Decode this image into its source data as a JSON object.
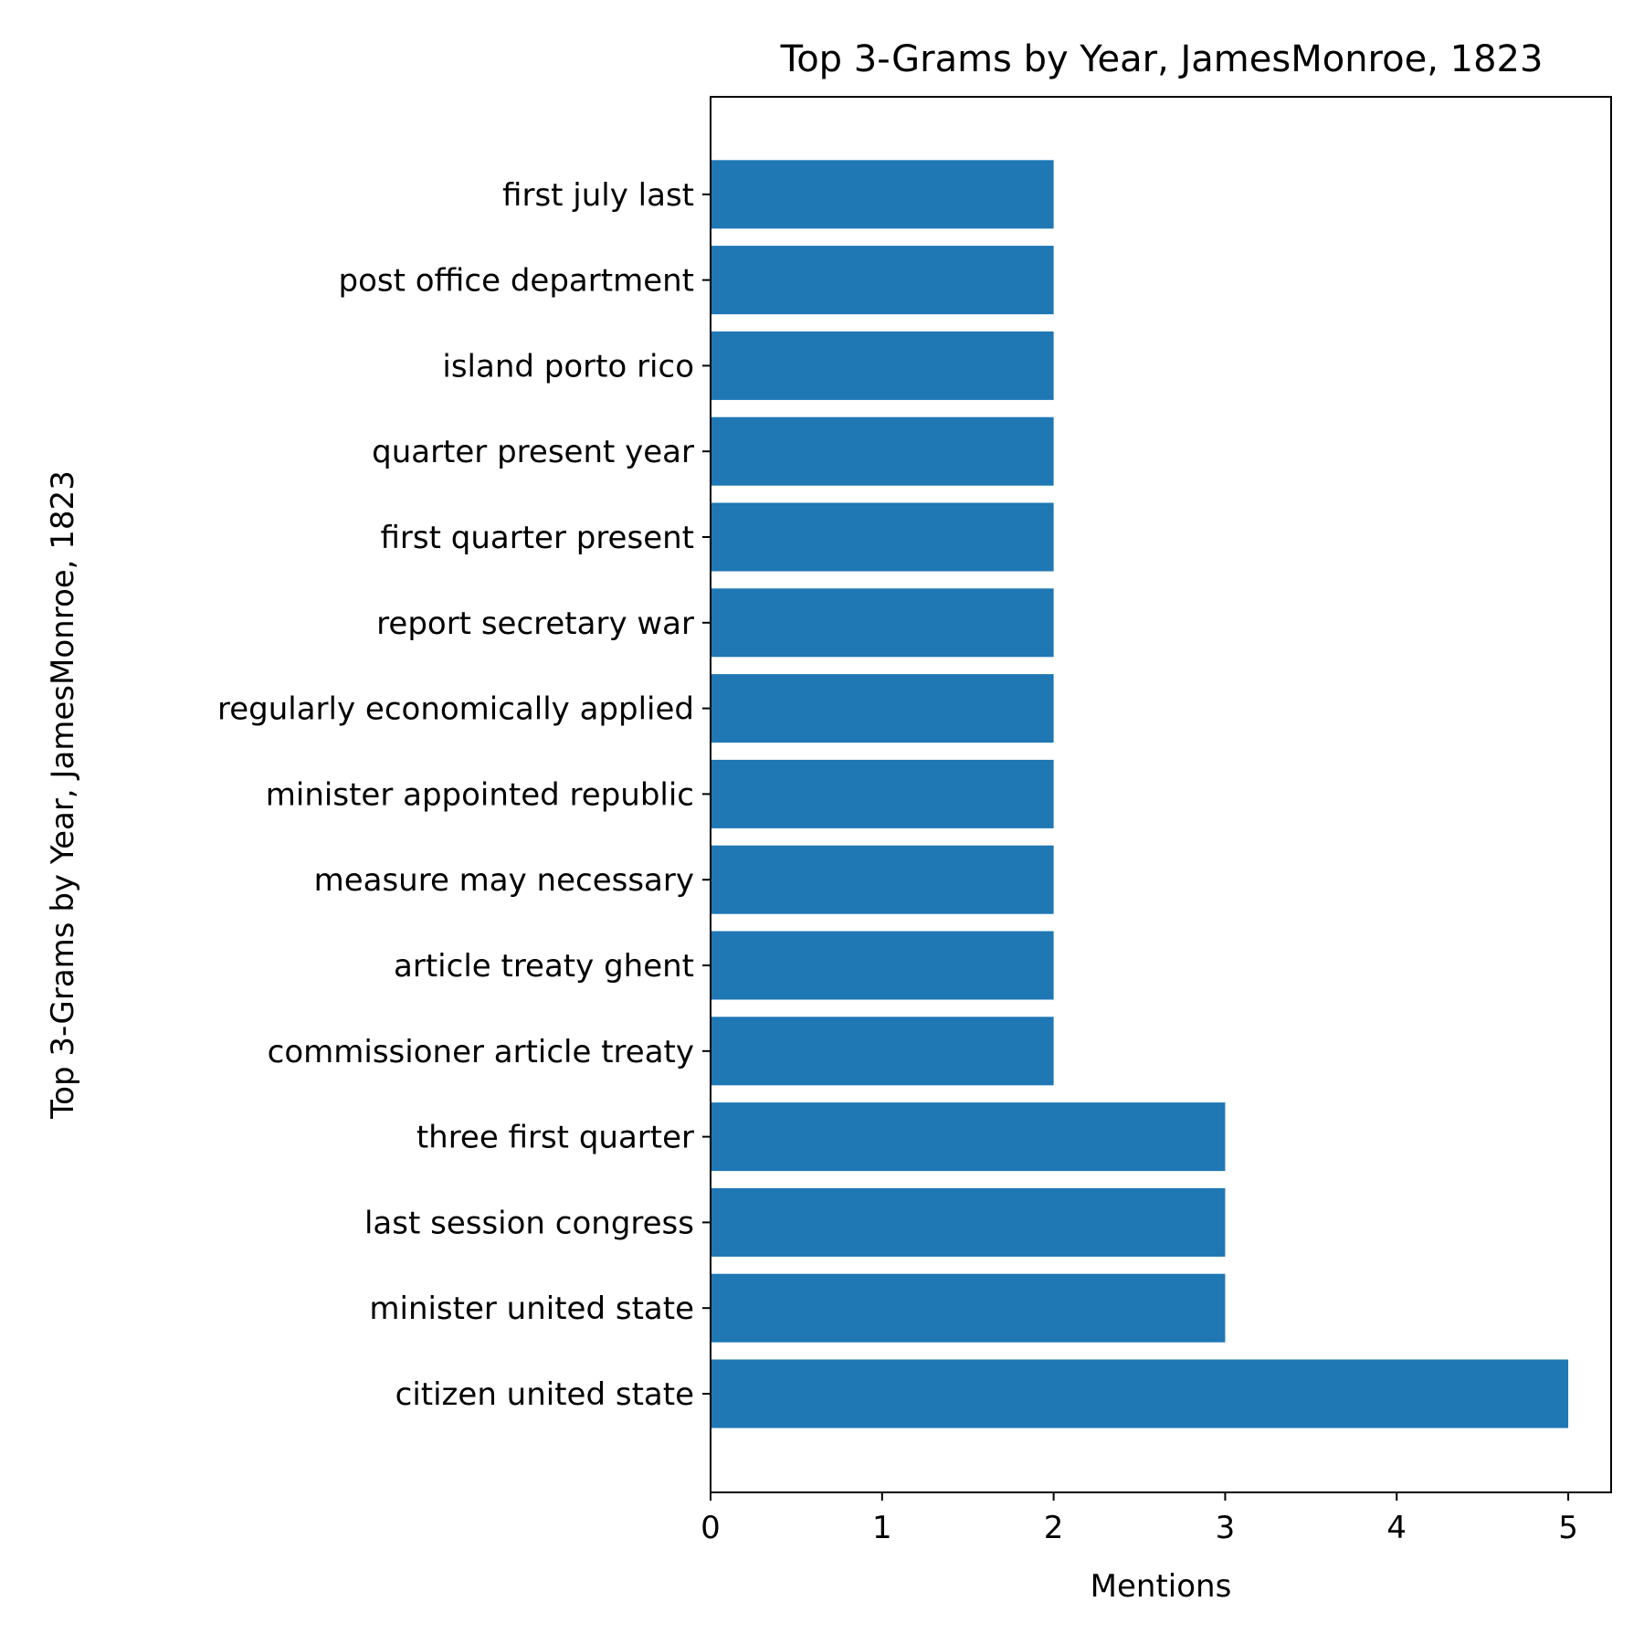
{
  "chart_data": {
    "type": "bar",
    "orientation": "horizontal",
    "title": "Top 3-Grams by Year, JamesMonroe, 1823",
    "xlabel": "Mentions",
    "ylabel": "Top 3-Grams by Year, JamesMonroe, 1823",
    "categories": [
      "citizen united state",
      "minister united state",
      "last session congress",
      "three first quarter",
      "commissioner article treaty",
      "article treaty ghent",
      "measure may necessary",
      "minister appointed republic",
      "regularly economically applied",
      "report secretary war",
      "first quarter present",
      "quarter present year",
      "island porto rico",
      "post office department",
      "first july last"
    ],
    "values": [
      5,
      3,
      3,
      3,
      2,
      2,
      2,
      2,
      2,
      2,
      2,
      2,
      2,
      2,
      2
    ],
    "xlim": [
      0,
      5.25
    ],
    "xticks": [
      0,
      1,
      2,
      3,
      4,
      5
    ],
    "grid": false,
    "bar_color": "#1f77b4"
  }
}
